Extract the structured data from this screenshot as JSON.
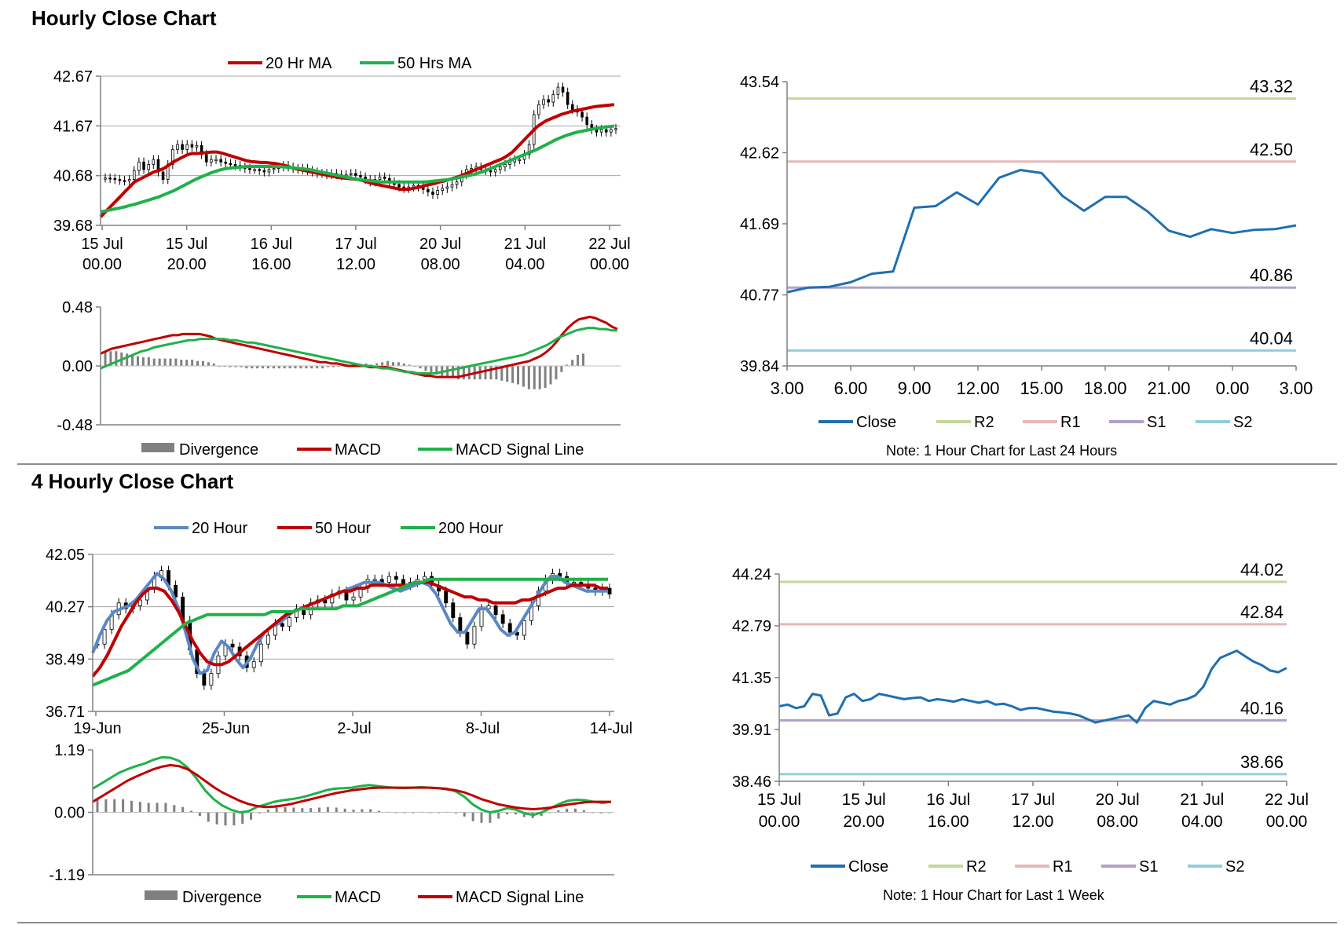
{
  "sections": {
    "hourly_title": "Hourly Close Chart",
    "four_hourly_title": "4 Hourly Close Chart"
  },
  "colors": {
    "red": "#c00000",
    "green": "#1fb14a",
    "blue": "#5b87c5",
    "close_blue": "#1f6fb0",
    "r2": "#c4d79b",
    "r1": "#e6b8b7",
    "s1": "#b1a0c7",
    "s2": "#92cddc",
    "divergence": "#808080",
    "axis": "#808080"
  },
  "chart_data": [
    {
      "id": "hourly_price",
      "type": "candlestick",
      "yticks": [
        "42.67",
        "41.67",
        "40.68",
        "39.68"
      ],
      "ylim": [
        39.68,
        42.67
      ],
      "xticks": [
        [
          "15 Jul",
          "00.00"
        ],
        [
          "15 Jul",
          "20.00"
        ],
        [
          "16 Jul",
          "16.00"
        ],
        [
          "17 Jul",
          "12.00"
        ],
        [
          "20 Jul",
          "08.00"
        ],
        [
          "21 Jul",
          "04.00"
        ],
        [
          "22 Jul",
          "00.00"
        ]
      ],
      "close": [
        40.63,
        40.62,
        40.6,
        40.58,
        40.57,
        40.6,
        40.78,
        40.95,
        40.8,
        40.9,
        41.0,
        40.75,
        40.6,
        40.9,
        41.2,
        41.3,
        41.2,
        41.3,
        41.25,
        41.28,
        41.1,
        40.95,
        41.0,
        41.0,
        40.95,
        40.92,
        40.9,
        40.88,
        40.85,
        40.82,
        40.8,
        40.8,
        40.78,
        40.75,
        40.8,
        40.82,
        40.85,
        40.88,
        40.85,
        40.82,
        40.8,
        40.82,
        40.78,
        40.75,
        40.72,
        40.72,
        40.7,
        40.72,
        40.7,
        40.68,
        40.7,
        40.72,
        40.68,
        40.65,
        40.6,
        40.55,
        40.6,
        40.65,
        40.62,
        40.55,
        40.5,
        40.45,
        40.42,
        40.45,
        40.48,
        40.45,
        40.4,
        40.35,
        40.3,
        40.38,
        40.42,
        40.45,
        40.5,
        40.55,
        40.7,
        40.8,
        40.82,
        40.85,
        40.8,
        40.78,
        40.75,
        40.8,
        40.85,
        40.9,
        40.95,
        41.0,
        41.0,
        41.1,
        41.3,
        41.9,
        42.1,
        42.2,
        42.15,
        42.3,
        42.45,
        42.35,
        42.1,
        42.0,
        41.95,
        41.85,
        41.7,
        41.6,
        41.55,
        41.6,
        41.55,
        41.6,
        41.62
      ],
      "ma20": [
        39.85,
        39.95,
        40.05,
        40.15,
        40.25,
        40.35,
        40.45,
        40.55,
        40.6,
        40.65,
        40.7,
        40.75,
        40.78,
        40.82,
        40.88,
        40.95,
        41.0,
        41.05,
        41.1,
        41.12,
        41.12,
        41.13,
        41.14,
        41.15,
        41.15,
        41.13,
        41.1,
        41.07,
        41.04,
        41.01,
        40.98,
        40.96,
        40.95,
        40.94,
        40.94,
        40.93,
        40.92,
        40.9,
        40.88,
        40.85,
        40.82,
        40.8,
        40.78,
        40.76,
        40.74,
        40.72,
        40.7,
        40.68,
        40.66,
        40.64,
        40.63,
        40.62,
        40.61,
        40.6,
        40.58,
        40.55,
        40.52,
        40.5,
        40.48,
        40.46,
        40.44,
        40.42,
        40.4,
        40.4,
        40.41,
        40.43,
        40.45,
        40.48,
        40.5,
        40.52,
        40.55,
        40.57,
        40.6,
        40.63,
        40.66,
        40.7,
        40.74,
        40.78,
        40.82,
        40.86,
        40.9,
        40.94,
        40.98,
        41.02,
        41.08,
        41.15,
        41.25,
        41.35,
        41.45,
        41.55,
        41.65,
        41.72,
        41.78,
        41.82,
        41.86,
        41.9,
        41.93,
        41.96,
        41.98,
        42.0,
        42.02,
        42.04,
        42.06,
        42.07,
        42.08,
        42.09,
        42.1
      ],
      "ma50": [
        39.95,
        39.97,
        39.99,
        40.01,
        40.03,
        40.05,
        40.08,
        40.1,
        40.13,
        40.16,
        40.19,
        40.22,
        40.25,
        40.29,
        40.33,
        40.37,
        40.42,
        40.47,
        40.52,
        40.57,
        40.62,
        40.66,
        40.7,
        40.74,
        40.77,
        40.8,
        40.82,
        40.83,
        40.84,
        40.85,
        40.86,
        40.86,
        40.86,
        40.86,
        40.86,
        40.86,
        40.86,
        40.86,
        40.85,
        40.84,
        40.83,
        40.82,
        40.81,
        40.8,
        40.78,
        40.76,
        40.74,
        40.72,
        40.7,
        40.68,
        40.66,
        40.64,
        40.62,
        40.6,
        40.59,
        40.58,
        40.57,
        40.56,
        40.55,
        40.55,
        40.55,
        40.55,
        40.55,
        40.55,
        40.55,
        40.55,
        40.55,
        40.55,
        40.56,
        40.57,
        40.58,
        40.59,
        40.6,
        40.62,
        40.64,
        40.66,
        40.68,
        40.7,
        40.73,
        40.76,
        40.8,
        40.84,
        40.88,
        40.92,
        40.96,
        41.0,
        41.04,
        41.08,
        41.12,
        41.16,
        41.2,
        41.25,
        41.3,
        41.35,
        41.4,
        41.44,
        41.48,
        41.51,
        41.54,
        41.56,
        41.58,
        41.6,
        41.62,
        41.63,
        41.65,
        41.66,
        41.67
      ],
      "legend": [
        "20 Hr MA",
        "50 Hrs MA"
      ]
    },
    {
      "id": "hourly_macd",
      "type": "macd",
      "yticks": [
        "0.48",
        "0.00",
        "-0.48"
      ],
      "ylim": [
        -0.48,
        0.48
      ],
      "macd": [
        0.1,
        0.12,
        0.14,
        0.15,
        0.16,
        0.17,
        0.18,
        0.19,
        0.2,
        0.21,
        0.22,
        0.23,
        0.24,
        0.25,
        0.25,
        0.26,
        0.26,
        0.26,
        0.26,
        0.25,
        0.24,
        0.22,
        0.21,
        0.2,
        0.19,
        0.18,
        0.17,
        0.16,
        0.15,
        0.14,
        0.13,
        0.12,
        0.11,
        0.1,
        0.09,
        0.08,
        0.07,
        0.06,
        0.05,
        0.04,
        0.03,
        0.03,
        0.02,
        0.02,
        0.01,
        0.0,
        0.0,
        0.0,
        0.0,
        -0.01,
        -0.01,
        -0.01,
        -0.01,
        -0.02,
        -0.03,
        -0.04,
        -0.05,
        -0.06,
        -0.07,
        -0.08,
        -0.08,
        -0.09,
        -0.09,
        -0.09,
        -0.09,
        -0.09,
        -0.08,
        -0.07,
        -0.06,
        -0.05,
        -0.04,
        -0.03,
        -0.02,
        -0.01,
        0.0,
        0.01,
        0.02,
        0.03,
        0.04,
        0.06,
        0.08,
        0.11,
        0.15,
        0.2,
        0.26,
        0.31,
        0.35,
        0.38,
        0.39,
        0.4,
        0.39,
        0.37,
        0.35,
        0.32,
        0.3
      ],
      "signal": [
        -0.02,
        0.0,
        0.02,
        0.04,
        0.06,
        0.08,
        0.1,
        0.12,
        0.13,
        0.15,
        0.16,
        0.17,
        0.18,
        0.19,
        0.2,
        0.21,
        0.21,
        0.22,
        0.22,
        0.22,
        0.22,
        0.22,
        0.21,
        0.21,
        0.2,
        0.19,
        0.19,
        0.18,
        0.17,
        0.16,
        0.15,
        0.14,
        0.13,
        0.12,
        0.11,
        0.1,
        0.09,
        0.08,
        0.07,
        0.06,
        0.05,
        0.04,
        0.03,
        0.02,
        0.01,
        0.0,
        0.0,
        -0.01,
        -0.02,
        -0.02,
        -0.03,
        -0.04,
        -0.05,
        -0.05,
        -0.06,
        -0.06,
        -0.06,
        -0.06,
        -0.05,
        -0.04,
        -0.03,
        -0.02,
        -0.01,
        0.0,
        0.01,
        0.02,
        0.03,
        0.04,
        0.05,
        0.06,
        0.07,
        0.08,
        0.09,
        0.11,
        0.13,
        0.15,
        0.17,
        0.2,
        0.23,
        0.25,
        0.27,
        0.29,
        0.3,
        0.31,
        0.31,
        0.3,
        0.3,
        0.29,
        0.29
      ],
      "legend": [
        "Divergence",
        "MACD",
        "MACD Signal Line"
      ]
    },
    {
      "id": "hourly_pivot",
      "type": "line",
      "yticks": [
        "43.54",
        "42.62",
        "41.69",
        "40.77",
        "39.84"
      ],
      "ylim": [
        39.84,
        43.54
      ],
      "xticks": [
        "3.00",
        "6.00",
        "9.00",
        "12.00",
        "15.00",
        "18.00",
        "21.00",
        "0.00",
        "3.00"
      ],
      "close": [
        40.8,
        40.86,
        40.87,
        40.93,
        41.04,
        41.07,
        41.9,
        41.92,
        42.1,
        41.94,
        42.29,
        42.39,
        42.35,
        42.05,
        41.86,
        42.04,
        42.04,
        41.85,
        41.6,
        41.52,
        41.62,
        41.57,
        41.61,
        41.62,
        41.67
      ],
      "levels": {
        "R2": 43.32,
        "R1": 42.5,
        "S1": 40.86,
        "S2": 40.04
      },
      "level_labels": {
        "R2": "43.32",
        "R1": "42.50",
        "S1": "40.86",
        "S2": "40.04"
      },
      "legend": [
        "Close",
        "R2",
        "R1",
        "S1",
        "S2"
      ],
      "note": "Note: 1 Hour Chart for Last 24 Hours"
    },
    {
      "id": "fourhourly_price",
      "type": "candlestick",
      "yticks": [
        "42.05",
        "40.27",
        "38.49",
        "36.71"
      ],
      "ylim": [
        36.71,
        42.05
      ],
      "xticks": [
        "19-Jun",
        "25-Jun",
        "2-Jul",
        "8-Jul",
        "14-Jul"
      ],
      "close": [
        39.0,
        39.5,
        40.0,
        40.4,
        40.2,
        40.3,
        40.5,
        40.9,
        41.3,
        41.5,
        41.0,
        40.6,
        39.8,
        38.8,
        38.0,
        37.6,
        38.0,
        38.6,
        39.0,
        38.9,
        38.6,
        38.2,
        38.4,
        39.0,
        39.3,
        39.7,
        39.6,
        39.9,
        40.2,
        40.0,
        40.4,
        40.5,
        40.4,
        40.7,
        40.8,
        40.5,
        40.6,
        40.9,
        41.2,
        41.2,
        41.1,
        41.3,
        41.2,
        41.0,
        41.1,
        41.2,
        41.3,
        41.0,
        40.8,
        40.4,
        39.9,
        39.4,
        39.0,
        39.6,
        40.2,
        40.3,
        40.0,
        39.7,
        39.4,
        39.3,
        39.8,
        40.3,
        40.8,
        41.2,
        41.4,
        41.3,
        41.1,
        41.1,
        41.0,
        40.9,
        40.8,
        40.9,
        40.7
      ],
      "ma20": [
        38.7,
        39.3,
        39.8,
        40.1,
        40.2,
        40.3,
        40.5,
        40.8,
        41.1,
        41.4,
        41.2,
        40.8,
        40.2,
        39.4,
        38.5,
        38.0,
        38.1,
        38.7,
        39.1,
        38.9,
        38.5,
        38.2,
        38.5,
        39.0,
        39.4,
        39.6,
        39.7,
        39.9,
        40.1,
        40.2,
        40.3,
        40.4,
        40.5,
        40.6,
        40.7,
        40.8,
        40.9,
        41.0,
        41.1,
        41.1,
        41.1,
        41.0,
        40.9,
        40.8,
        40.9,
        41.0,
        41.1,
        41.0,
        40.7,
        40.2,
        39.7,
        39.4,
        39.4,
        39.8,
        40.2,
        40.2,
        39.9,
        39.5,
        39.3,
        39.4,
        39.8,
        40.2,
        40.6,
        41.0,
        41.3,
        41.3,
        41.1,
        41.0,
        40.9,
        40.8,
        40.8,
        40.8,
        40.8
      ],
      "ma50": [
        37.9,
        38.2,
        38.6,
        39.1,
        39.6,
        40.0,
        40.4,
        40.7,
        40.9,
        40.9,
        40.8,
        40.5,
        40.1,
        39.6,
        39.1,
        38.7,
        38.4,
        38.3,
        38.3,
        38.4,
        38.6,
        38.8,
        39.0,
        39.2,
        39.4,
        39.6,
        39.8,
        40.0,
        40.1,
        40.2,
        40.3,
        40.4,
        40.5,
        40.6,
        40.7,
        40.8,
        40.8,
        40.9,
        40.9,
        41.0,
        41.0,
        41.0,
        41.0,
        41.0,
        41.0,
        41.1,
        41.1,
        41.1,
        41.0,
        40.9,
        40.8,
        40.7,
        40.6,
        40.6,
        40.5,
        40.5,
        40.4,
        40.4,
        40.4,
        40.4,
        40.5,
        40.5,
        40.6,
        40.7,
        40.8,
        40.9,
        40.9,
        41.0,
        41.0,
        41.0,
        41.0,
        40.9,
        40.9
      ],
      "ma200": [
        37.6,
        37.7,
        37.8,
        37.9,
        38.0,
        38.1,
        38.3,
        38.5,
        38.7,
        38.9,
        39.1,
        39.3,
        39.5,
        39.7,
        39.8,
        39.9,
        40.0,
        40.0,
        40.0,
        40.0,
        40.0,
        40.0,
        40.0,
        40.0,
        40.0,
        40.1,
        40.1,
        40.1,
        40.1,
        40.2,
        40.2,
        40.2,
        40.2,
        40.2,
        40.2,
        40.3,
        40.3,
        40.3,
        40.4,
        40.5,
        40.6,
        40.7,
        40.8,
        40.9,
        41.0,
        41.1,
        41.1,
        41.2,
        41.2,
        41.2,
        41.2,
        41.2,
        41.2,
        41.2,
        41.2,
        41.2,
        41.2,
        41.2,
        41.2,
        41.2,
        41.2,
        41.2,
        41.2,
        41.2,
        41.2,
        41.2,
        41.2,
        41.2,
        41.2,
        41.2,
        41.2,
        41.2,
        41.2
      ],
      "legend": [
        "20 Hour",
        "50 Hour",
        "200 Hour"
      ]
    },
    {
      "id": "fourhourly_macd",
      "type": "macd",
      "yticks": [
        "1.19",
        "0.00",
        "-1.19"
      ],
      "ylim": [
        -1.19,
        1.19
      ],
      "macd": [
        0.45,
        0.55,
        0.65,
        0.75,
        0.82,
        0.88,
        0.93,
        1.0,
        1.05,
        1.04,
        0.98,
        0.85,
        0.65,
        0.42,
        0.25,
        0.13,
        0.05,
        0.0,
        0.02,
        0.1,
        0.15,
        0.2,
        0.23,
        0.25,
        0.28,
        0.32,
        0.37,
        0.42,
        0.45,
        0.46,
        0.47,
        0.5,
        0.52,
        0.5,
        0.48,
        0.47,
        0.46,
        0.47,
        0.48,
        0.47,
        0.46,
        0.45,
        0.4,
        0.3,
        0.15,
        0.05,
        0.0,
        0.03,
        0.08,
        0.05,
        -0.02,
        -0.05,
        0.0,
        0.08,
        0.16,
        0.22,
        0.24,
        0.23,
        0.2,
        0.18,
        0.2
      ],
      "signal": [
        0.2,
        0.3,
        0.4,
        0.5,
        0.6,
        0.68,
        0.75,
        0.82,
        0.87,
        0.9,
        0.88,
        0.82,
        0.72,
        0.6,
        0.48,
        0.38,
        0.3,
        0.22,
        0.16,
        0.12,
        0.1,
        0.11,
        0.13,
        0.16,
        0.2,
        0.24,
        0.28,
        0.32,
        0.36,
        0.39,
        0.42,
        0.44,
        0.46,
        0.47,
        0.47,
        0.47,
        0.47,
        0.47,
        0.47,
        0.47,
        0.46,
        0.44,
        0.42,
        0.38,
        0.32,
        0.25,
        0.2,
        0.15,
        0.12,
        0.09,
        0.07,
        0.06,
        0.07,
        0.09,
        0.12,
        0.15,
        0.17,
        0.19,
        0.2,
        0.2,
        0.2
      ],
      "legend": [
        "Divergence",
        "MACD",
        "MACD Signal Line"
      ]
    },
    {
      "id": "weekly_pivot",
      "type": "line",
      "yticks": [
        "44.24",
        "42.79",
        "41.35",
        "39.91",
        "38.46"
      ],
      "ylim": [
        38.46,
        44.24
      ],
      "xticks": [
        [
          "15 Jul",
          "00.00"
        ],
        [
          "15 Jul",
          "20.00"
        ],
        [
          "16 Jul",
          "16.00"
        ],
        [
          "17 Jul",
          "12.00"
        ],
        [
          "20 Jul",
          "08.00"
        ],
        [
          "21 Jul",
          "04.00"
        ],
        [
          "22 Jul",
          "00.00"
        ]
      ],
      "close": [
        40.55,
        40.6,
        40.5,
        40.55,
        40.9,
        40.85,
        40.3,
        40.35,
        40.8,
        40.9,
        40.7,
        40.75,
        40.9,
        40.85,
        40.8,
        40.75,
        40.78,
        40.8,
        40.7,
        40.75,
        40.72,
        40.68,
        40.75,
        40.7,
        40.65,
        40.7,
        40.6,
        40.62,
        40.55,
        40.45,
        40.5,
        40.5,
        40.45,
        40.4,
        40.38,
        40.35,
        40.3,
        40.2,
        40.1,
        40.15,
        40.2,
        40.25,
        40.3,
        40.1,
        40.5,
        40.7,
        40.65,
        40.6,
        40.7,
        40.75,
        40.85,
        41.1,
        41.6,
        41.9,
        42.0,
        42.1,
        41.95,
        41.8,
        41.7,
        41.55,
        41.5,
        41.62
      ],
      "levels": {
        "R2": 44.02,
        "R1": 42.84,
        "S1": 40.16,
        "S2": 38.66
      },
      "level_labels": {
        "R2": "44.02",
        "R1": "42.84",
        "S1": "40.16",
        "S2": "38.66"
      },
      "legend": [
        "Close",
        "R2",
        "R1",
        "S1",
        "S2"
      ],
      "note": "Note: 1 Hour Chart for Last 1 Week"
    }
  ]
}
